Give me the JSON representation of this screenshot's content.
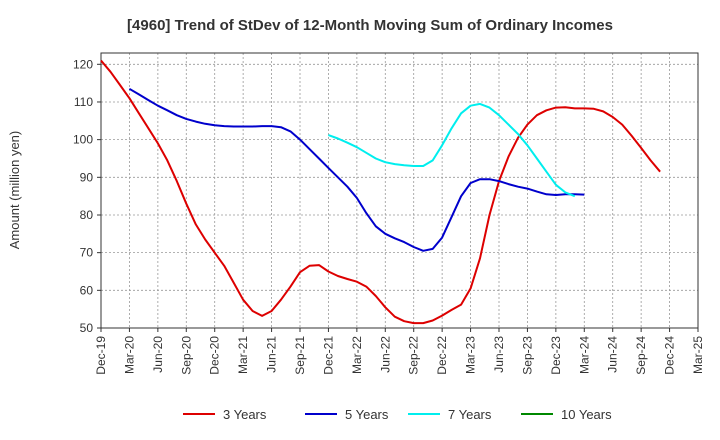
{
  "chart_data": {
    "type": "line",
    "title": "[4960]  Trend of StDev of 12-Month Moving Sum of Ordinary Incomes",
    "ylabel": "Amount (million yen)",
    "xlabel": "",
    "ylim": [
      50,
      123
    ],
    "yticks": [
      50,
      60,
      70,
      80,
      90,
      100,
      110,
      120
    ],
    "x_start": "Dec-19",
    "x_end": "Mar-25",
    "x_tick_labels": [
      "Dec-19",
      "Mar-20",
      "Jun-20",
      "Sep-20",
      "Dec-20",
      "Mar-21",
      "Jun-21",
      "Sep-21",
      "Dec-21",
      "Mar-22",
      "Jun-22",
      "Sep-22",
      "Dec-22",
      "Mar-23",
      "Jun-23",
      "Sep-23",
      "Dec-23",
      "Mar-24",
      "Jun-24",
      "Sep-24",
      "Dec-24",
      "Mar-25"
    ],
    "grid": true,
    "legend_position": "bottom",
    "series": [
      {
        "name": "3 Years",
        "color": "#dd0000",
        "start_index": 0,
        "values": [
          121,
          118,
          114.5,
          111,
          107,
          103,
          99,
          94.5,
          89,
          83,
          77.5,
          73.5,
          70,
          66.5,
          62,
          57.5,
          54.5,
          53.2,
          54.5,
          57.5,
          61,
          64.8,
          66.5,
          66.7,
          65,
          63.8,
          63,
          62.3,
          61,
          58.5,
          55.5,
          53,
          51.8,
          51.3,
          51.3,
          52,
          53.3,
          54.8,
          56.2,
          60.5,
          68.5,
          80,
          89,
          95.5,
          100.5,
          104,
          106.5,
          107.8,
          108.5,
          108.6,
          108.3,
          108.3,
          108.2,
          107.5,
          106,
          104,
          101,
          97.8,
          94.5,
          91.5
        ]
      },
      {
        "name": "5 Years",
        "color": "#0000cc",
        "start_index": 0,
        "values": [
          null,
          null,
          null,
          113.5,
          112,
          110.5,
          109,
          107.8,
          106.5,
          105.5,
          104.8,
          104.2,
          103.8,
          103.6,
          103.5,
          103.5,
          103.5,
          103.6,
          103.6,
          103.3,
          102.2,
          100,
          97.5,
          95,
          92.5,
          90,
          87.5,
          84.5,
          80.5,
          77,
          75,
          73.8,
          72.8,
          71.5,
          70.5,
          71,
          74,
          79.5,
          85,
          88.5,
          89.5,
          89.5,
          89,
          88.2,
          87.5,
          87,
          86.2,
          85.5,
          85.3,
          85.5,
          85.5,
          85.4
        ]
      },
      {
        "name": "7 Years",
        "color": "#00eeee",
        "start_index": 0,
        "values": [
          null,
          null,
          null,
          null,
          null,
          null,
          null,
          null,
          null,
          null,
          null,
          null,
          null,
          null,
          null,
          null,
          null,
          null,
          null,
          null,
          null,
          null,
          null,
          null,
          101.2,
          100.3,
          99.2,
          98,
          96.5,
          95,
          94,
          93.5,
          93.2,
          93,
          93,
          94.5,
          98.5,
          103,
          107,
          109,
          109.5,
          108.5,
          106.5,
          104,
          101.5,
          98.5,
          95,
          91.5,
          88,
          86,
          85
        ]
      },
      {
        "name": "10 Years",
        "color": "#008800",
        "start_index": 0,
        "values": []
      }
    ]
  }
}
